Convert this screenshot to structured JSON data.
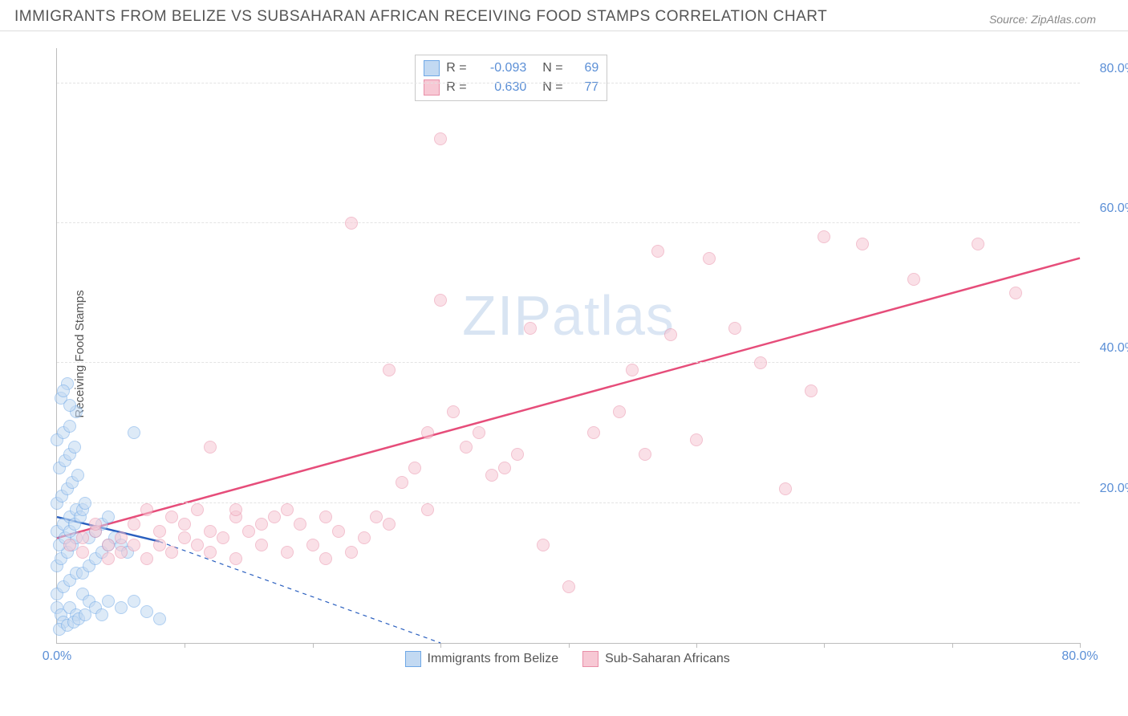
{
  "header": {
    "title": "IMMIGRANTS FROM BELIZE VS SUBSAHARAN AFRICAN RECEIVING FOOD STAMPS CORRELATION CHART",
    "source_label": "Source:",
    "source_value": "ZipAtlas.com"
  },
  "chart": {
    "type": "scatter",
    "y_axis_label": "Receiving Food Stamps",
    "x_range": [
      0,
      80
    ],
    "y_range": [
      0,
      85
    ],
    "y_ticks": [
      20,
      40,
      60,
      80
    ],
    "y_tick_labels": [
      "20.0%",
      "40.0%",
      "60.0%",
      "80.0%"
    ],
    "x_tick_marks": [
      10,
      20,
      30,
      40,
      50,
      60,
      70,
      80
    ],
    "x_origin_label": "0.0%",
    "x_end_label": "80.0%",
    "grid_color": "#e3e3e3",
    "axis_color": "#bdbdbd",
    "tick_label_color": "#5b8fd6",
    "background_color": "#ffffff",
    "watermark": "ZIPatlas",
    "watermark_color": "#b9cfe9",
    "marker_radius": 8,
    "marker_border_width": 1.5,
    "series": [
      {
        "name": "Immigrants from Belize",
        "fill": "#c2d9f2",
        "stroke": "#6fa8e6",
        "fill_opacity": 0.55,
        "R": "-0.093",
        "N": "69",
        "trend": {
          "x1": 0,
          "y1": 18,
          "x2": 8,
          "y2": 14.5,
          "color": "#2a5fbf",
          "width": 2.5,
          "dash": "none"
        },
        "trend_ext": {
          "x1": 8,
          "y1": 14.5,
          "x2": 30,
          "y2": 0,
          "color": "#2a5fbf",
          "width": 1.2,
          "dash": "5,5"
        },
        "points": [
          [
            0,
            5
          ],
          [
            0.3,
            4
          ],
          [
            0.5,
            3
          ],
          [
            1,
            5
          ],
          [
            1.5,
            4
          ],
          [
            0,
            7
          ],
          [
            0.5,
            8
          ],
          [
            1,
            9
          ],
          [
            1.5,
            10
          ],
          [
            0,
            11
          ],
          [
            0.3,
            12
          ],
          [
            0.8,
            13
          ],
          [
            1.2,
            14
          ],
          [
            1.5,
            15
          ],
          [
            0,
            16
          ],
          [
            0.5,
            17
          ],
          [
            1,
            18
          ],
          [
            1.5,
            19
          ],
          [
            0,
            20
          ],
          [
            0.4,
            21
          ],
          [
            0.8,
            22
          ],
          [
            1.2,
            23
          ],
          [
            1.6,
            24
          ],
          [
            0.2,
            25
          ],
          [
            0.6,
            26
          ],
          [
            1,
            27
          ],
          [
            1.4,
            28
          ],
          [
            0,
            29
          ],
          [
            0.5,
            30
          ],
          [
            1,
            31
          ],
          [
            1.5,
            33
          ],
          [
            0.3,
            35
          ],
          [
            0.8,
            37
          ],
          [
            0.2,
            14
          ],
          [
            0.6,
            15
          ],
          [
            1,
            16
          ],
          [
            1.4,
            17
          ],
          [
            1.8,
            18
          ],
          [
            2,
            19
          ],
          [
            2.2,
            20
          ],
          [
            2.5,
            15
          ],
          [
            3,
            16
          ],
          [
            3.5,
            17
          ],
          [
            4,
            18
          ],
          [
            2,
            10
          ],
          [
            2.5,
            11
          ],
          [
            3,
            12
          ],
          [
            3.5,
            13
          ],
          [
            4,
            14
          ],
          [
            4.5,
            15
          ],
          [
            5,
            14
          ],
          [
            5.5,
            13
          ],
          [
            2,
            7
          ],
          [
            2.5,
            6
          ],
          [
            3,
            5
          ],
          [
            3.5,
            4
          ],
          [
            4,
            6
          ],
          [
            5,
            5
          ],
          [
            6,
            6
          ],
          [
            7,
            4.5
          ],
          [
            8,
            3.5
          ],
          [
            6,
            30
          ],
          [
            1,
            34
          ],
          [
            0.5,
            36
          ],
          [
            0.2,
            2
          ],
          [
            0.8,
            2.5
          ],
          [
            1.3,
            3
          ],
          [
            1.7,
            3.5
          ],
          [
            2.2,
            4
          ]
        ]
      },
      {
        "name": "Sub-Saharan Africans",
        "fill": "#f7c8d4",
        "stroke": "#e98fa8",
        "fill_opacity": 0.55,
        "R": "0.630",
        "N": "77",
        "trend": {
          "x1": 0,
          "y1": 15,
          "x2": 80,
          "y2": 55,
          "color": "#e64d7a",
          "width": 2.5,
          "dash": "none"
        },
        "points": [
          [
            1,
            14
          ],
          [
            2,
            15
          ],
          [
            3,
            16
          ],
          [
            4,
            14
          ],
          [
            5,
            15
          ],
          [
            6,
            17
          ],
          [
            7,
            19
          ],
          [
            8,
            16
          ],
          [
            9,
            18
          ],
          [
            10,
            17
          ],
          [
            11,
            19
          ],
          [
            12,
            16
          ],
          [
            5,
            13
          ],
          [
            7,
            12
          ],
          [
            9,
            13
          ],
          [
            11,
            14
          ],
          [
            13,
            15
          ],
          [
            14,
            18
          ],
          [
            15,
            16
          ],
          [
            16,
            17
          ],
          [
            17,
            18
          ],
          [
            18,
            19
          ],
          [
            12,
            28
          ],
          [
            14,
            19
          ],
          [
            16,
            14
          ],
          [
            18,
            13
          ],
          [
            20,
            14
          ],
          [
            22,
            16
          ],
          [
            24,
            15
          ],
          [
            21,
            12
          ],
          [
            23,
            13
          ],
          [
            25,
            18
          ],
          [
            26,
            39
          ],
          [
            23,
            60
          ],
          [
            27,
            23
          ],
          [
            28,
            25
          ],
          [
            29,
            30
          ],
          [
            30,
            49
          ],
          [
            30,
            72
          ],
          [
            31,
            33
          ],
          [
            32,
            28
          ],
          [
            33,
            30
          ],
          [
            34,
            24
          ],
          [
            35,
            25
          ],
          [
            36,
            27
          ],
          [
            38,
            14
          ],
          [
            40,
            8
          ],
          [
            37,
            45
          ],
          [
            42,
            30
          ],
          [
            44,
            33
          ],
          [
            45,
            39
          ],
          [
            46,
            27
          ],
          [
            47,
            56
          ],
          [
            48,
            44
          ],
          [
            50,
            29
          ],
          [
            51,
            55
          ],
          [
            53,
            45
          ],
          [
            55,
            40
          ],
          [
            57,
            22
          ],
          [
            59,
            36
          ],
          [
            60,
            58
          ],
          [
            63,
            57
          ],
          [
            67,
            52
          ],
          [
            72,
            57
          ],
          [
            75,
            50
          ],
          [
            8,
            14
          ],
          [
            10,
            15
          ],
          [
            12,
            13
          ],
          [
            14,
            12
          ],
          [
            2,
            13
          ],
          [
            4,
            12
          ],
          [
            6,
            14
          ],
          [
            3,
            17
          ],
          [
            19,
            17
          ],
          [
            21,
            18
          ],
          [
            26,
            17
          ],
          [
            29,
            19
          ]
        ]
      }
    ],
    "legend_bottom": [
      {
        "label": "Immigrants from Belize",
        "fill": "#c2d9f2",
        "stroke": "#6fa8e6"
      },
      {
        "label": "Sub-Saharan Africans",
        "fill": "#f7c8d4",
        "stroke": "#e98fa8"
      }
    ]
  }
}
